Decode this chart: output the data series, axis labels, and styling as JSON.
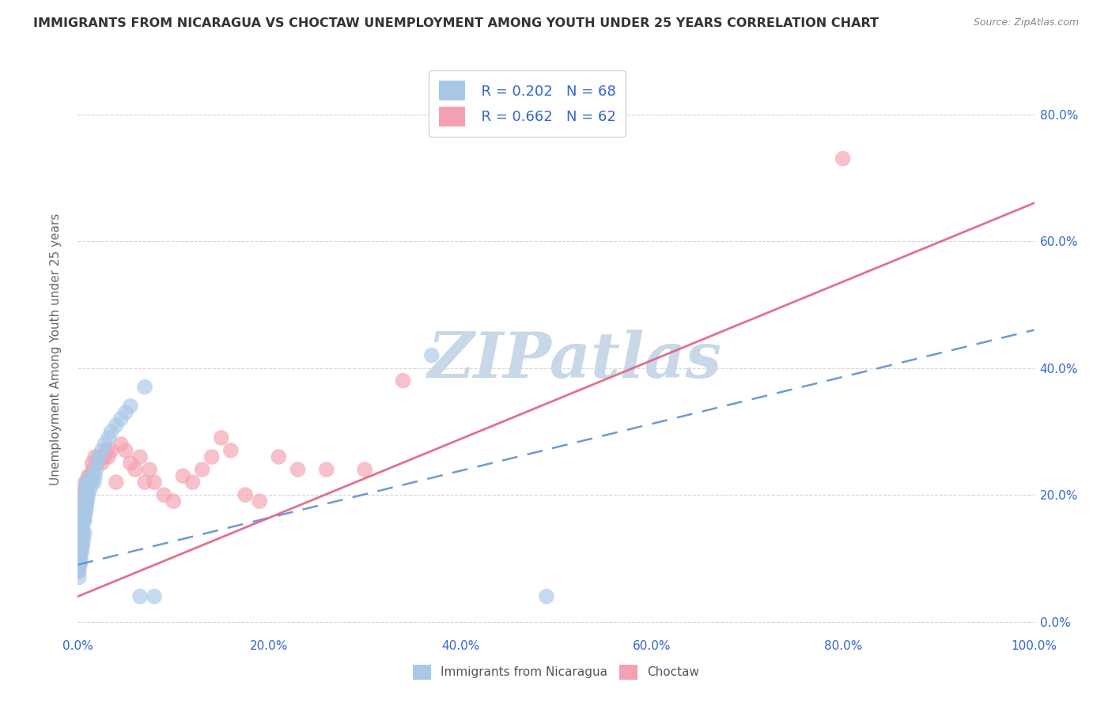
{
  "title": "IMMIGRANTS FROM NICARAGUA VS CHOCTAW UNEMPLOYMENT AMONG YOUTH UNDER 25 YEARS CORRELATION CHART",
  "source": "Source: ZipAtlas.com",
  "ylabel": "Unemployment Among Youth under 25 years",
  "legend_label1": "Immigrants from Nicaragua",
  "legend_label2": "Choctaw",
  "R1": 0.202,
  "N1": 68,
  "R2": 0.662,
  "N2": 62,
  "color1": "#A8C8E8",
  "color2": "#F4A0B0",
  "trendline1_color": "#5588CC",
  "trendline2_color": "#E06080",
  "watermark": "ZIPatlas",
  "watermark_color": "#C8D8E8",
  "background_color": "#ffffff",
  "xlim": [
    0.0,
    1.0
  ],
  "ylim": [
    -0.02,
    0.88
  ],
  "x_tick_vals": [
    0.0,
    0.2,
    0.4,
    0.6,
    0.8,
    1.0
  ],
  "x_tick_labels": [
    "0.0%",
    "20.0%",
    "40.0%",
    "60.0%",
    "80.0%",
    "100.0%"
  ],
  "y_tick_vals": [
    0.0,
    0.2,
    0.4,
    0.6,
    0.8
  ],
  "y_tick_labels": [
    "0.0%",
    "20.0%",
    "40.0%",
    "60.0%",
    "80.0%"
  ],
  "trendline1_x": [
    0.0,
    1.0
  ],
  "trendline1_y": [
    0.09,
    0.46
  ],
  "trendline2_x": [
    0.0,
    1.0
  ],
  "trendline2_y": [
    0.04,
    0.66
  ],
  "scatter1_x": [
    0.001,
    0.001,
    0.001,
    0.001,
    0.001,
    0.001,
    0.002,
    0.002,
    0.002,
    0.002,
    0.002,
    0.002,
    0.002,
    0.003,
    0.003,
    0.003,
    0.003,
    0.003,
    0.004,
    0.004,
    0.004,
    0.004,
    0.004,
    0.005,
    0.005,
    0.005,
    0.005,
    0.006,
    0.006,
    0.006,
    0.006,
    0.007,
    0.007,
    0.007,
    0.007,
    0.008,
    0.008,
    0.008,
    0.009,
    0.009,
    0.009,
    0.01,
    0.01,
    0.011,
    0.011,
    0.012,
    0.013,
    0.014,
    0.015,
    0.016,
    0.017,
    0.018,
    0.019,
    0.02,
    0.022,
    0.025,
    0.028,
    0.032,
    0.035,
    0.04,
    0.045,
    0.05,
    0.055,
    0.065,
    0.07,
    0.08,
    0.37,
    0.49
  ],
  "scatter1_y": [
    0.12,
    0.11,
    0.1,
    0.09,
    0.08,
    0.07,
    0.15,
    0.14,
    0.13,
    0.12,
    0.11,
    0.1,
    0.09,
    0.16,
    0.15,
    0.13,
    0.12,
    0.1,
    0.17,
    0.16,
    0.14,
    0.13,
    0.11,
    0.18,
    0.16,
    0.15,
    0.12,
    0.19,
    0.17,
    0.16,
    0.13,
    0.2,
    0.18,
    0.16,
    0.14,
    0.21,
    0.19,
    0.17,
    0.22,
    0.2,
    0.18,
    0.21,
    0.19,
    0.22,
    0.2,
    0.22,
    0.21,
    0.22,
    0.23,
    0.23,
    0.22,
    0.23,
    0.24,
    0.25,
    0.26,
    0.27,
    0.28,
    0.29,
    0.3,
    0.31,
    0.32,
    0.33,
    0.34,
    0.04,
    0.37,
    0.04,
    0.42,
    0.04
  ],
  "scatter2_x": [
    0.001,
    0.001,
    0.001,
    0.002,
    0.002,
    0.002,
    0.003,
    0.003,
    0.003,
    0.004,
    0.004,
    0.005,
    0.005,
    0.006,
    0.006,
    0.007,
    0.007,
    0.008,
    0.008,
    0.009,
    0.009,
    0.01,
    0.01,
    0.011,
    0.012,
    0.013,
    0.014,
    0.015,
    0.016,
    0.018,
    0.02,
    0.022,
    0.025,
    0.028,
    0.03,
    0.032,
    0.035,
    0.04,
    0.045,
    0.05,
    0.055,
    0.06,
    0.065,
    0.07,
    0.075,
    0.08,
    0.09,
    0.1,
    0.11,
    0.12,
    0.13,
    0.14,
    0.15,
    0.16,
    0.175,
    0.19,
    0.21,
    0.23,
    0.26,
    0.3,
    0.34,
    0.8
  ],
  "scatter2_y": [
    0.12,
    0.1,
    0.08,
    0.15,
    0.14,
    0.09,
    0.16,
    0.15,
    0.11,
    0.17,
    0.12,
    0.19,
    0.14,
    0.2,
    0.16,
    0.21,
    0.17,
    0.22,
    0.18,
    0.21,
    0.19,
    0.22,
    0.2,
    0.23,
    0.22,
    0.23,
    0.22,
    0.25,
    0.24,
    0.26,
    0.25,
    0.26,
    0.25,
    0.26,
    0.27,
    0.26,
    0.27,
    0.22,
    0.28,
    0.27,
    0.25,
    0.24,
    0.26,
    0.22,
    0.24,
    0.22,
    0.2,
    0.19,
    0.23,
    0.22,
    0.24,
    0.26,
    0.29,
    0.27,
    0.2,
    0.19,
    0.26,
    0.24,
    0.24,
    0.24,
    0.38,
    0.73
  ]
}
